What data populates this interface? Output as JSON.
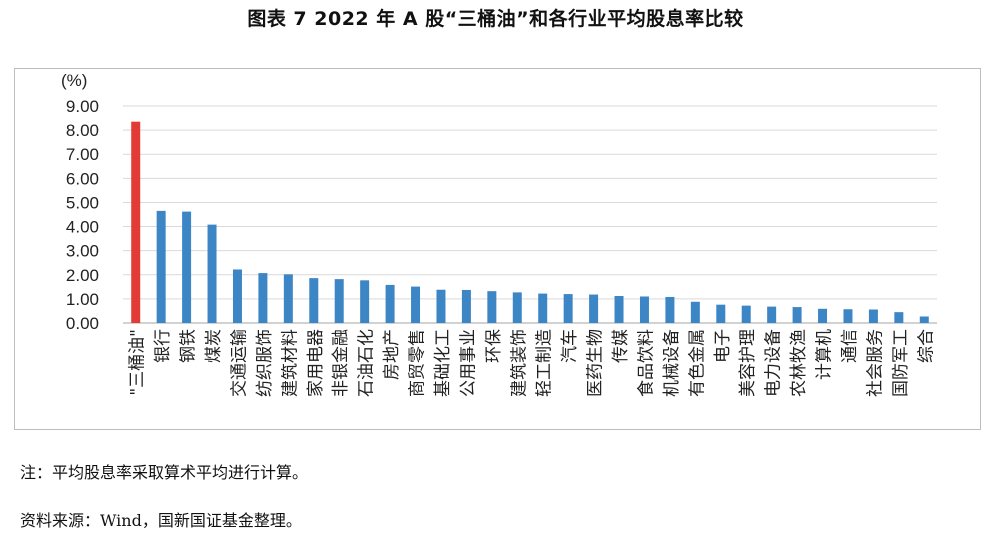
{
  "title": "图表 7  2022 年 A 股“三桶油”和各行业平均股息率比较",
  "notes": {
    "method": "注：平均股息率采取算术平均进行计算。",
    "source": "资料来源：Wind，国新国证基金整理。"
  },
  "colors": {
    "highlight": "#e23b35",
    "bar": "#3d86c6",
    "grid": "#d9d9d9",
    "axis": "#a6a6a6"
  },
  "chart_data": {
    "type": "bar",
    "ylabel": "(%)",
    "ylim": [
      0,
      9
    ],
    "yticks": [
      "0.00",
      "1.00",
      "2.00",
      "3.00",
      "4.00",
      "5.00",
      "6.00",
      "7.00",
      "8.00",
      "9.00"
    ],
    "grid": true,
    "legend": "none",
    "categories": [
      "\"三桶油\"",
      "银行",
      "钢铁",
      "煤炭",
      "交通运输",
      "纺织服饰",
      "建筑材料",
      "家用电器",
      "非银金融",
      "石油石化",
      "房地产",
      "商贸零售",
      "基础化工",
      "公用事业",
      "环保",
      "建筑装饰",
      "轻工制造",
      "汽车",
      "医药生物",
      "传媒",
      "食品饮料",
      "机械设备",
      "有色金属",
      "电子",
      "美容护理",
      "电力设备",
      "农林牧渔",
      "计算机",
      "通信",
      "社会服务",
      "国防军工",
      "综合"
    ],
    "values": [
      8.35,
      4.65,
      4.62,
      4.08,
      2.22,
      2.07,
      2.02,
      1.86,
      1.82,
      1.77,
      1.58,
      1.51,
      1.38,
      1.37,
      1.32,
      1.27,
      1.22,
      1.2,
      1.18,
      1.12,
      1.1,
      1.08,
      0.88,
      0.76,
      0.72,
      0.68,
      0.66,
      0.59,
      0.57,
      0.56,
      0.45,
      0.27
    ],
    "highlight_index": 0
  }
}
